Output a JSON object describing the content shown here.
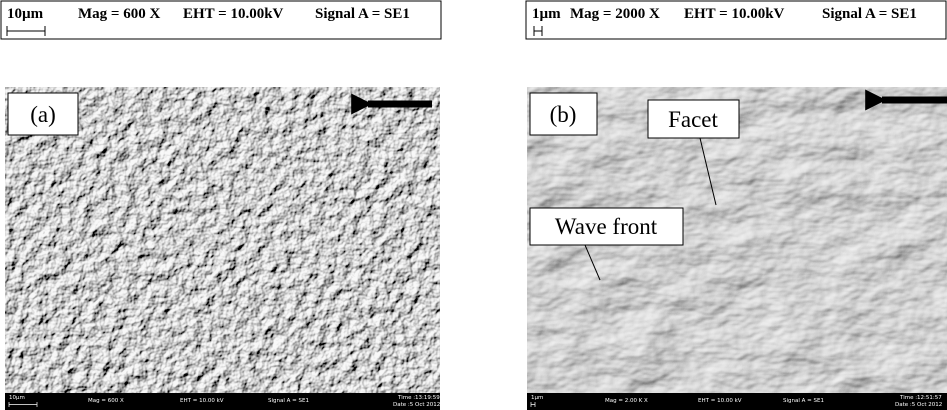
{
  "panels": [
    {
      "header": {
        "scale": "10µm",
        "mag": "Mag = 600 X",
        "eht": "EHT = 10.00kV",
        "signal": "Signal A = SE1"
      },
      "label": "(a)",
      "footer": {
        "scale": "10µm",
        "mag": "Mag =   600 X",
        "eht": "EHT = 10.00 kV",
        "signal": "Signal A = SE1",
        "time": "Time :13:19:59",
        "date": "Date :5 Oct 2012"
      }
    },
    {
      "header": {
        "scale": "1µm",
        "mag": "Mag = 2000 X",
        "eht": "EHT = 10.00kV",
        "signal": "Signal A = SE1"
      },
      "label": "(b)",
      "annotations": [
        "Facet",
        "Wave front"
      ],
      "footer": {
        "scale": "1µm",
        "mag": "Mag =  2.00 K X",
        "eht": "EHT = 10.00 kV",
        "signal": "Signal A = SE1",
        "time": "Time :12:51:57",
        "date": "Date :5 Oct 2012"
      }
    }
  ]
}
